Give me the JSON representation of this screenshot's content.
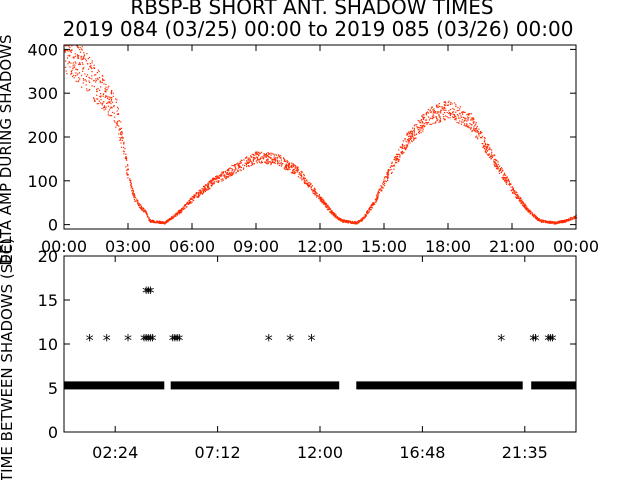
{
  "figure": {
    "title_line1": "RBSP-B SHORT ANT. SHADOW TIMES",
    "title_line2": "2019 084 (03/25) 00:00 to 2019 085 (03/26) 00:00"
  },
  "chart_data": [
    {
      "type": "scatter",
      "title": "",
      "ylabel": "DELTA AMP DURING SHADOWS",
      "xlabel": "",
      "x_unit": "hours",
      "xlim": [
        0,
        24
      ],
      "ylim": [
        -10,
        410
      ],
      "xticks": [
        "00:00",
        "03:00",
        "06:00",
        "09:00",
        "12:00",
        "15:00",
        "18:00",
        "21:00",
        "00:00"
      ],
      "yticks": [
        0,
        100,
        200,
        300,
        400
      ],
      "color": "#ff2a00",
      "grid": false,
      "series": [
        {
          "profile_envelope": [
            [
              0.0,
              400
            ],
            [
              0.5,
              380
            ],
            [
              1.0,
              350
            ],
            [
              1.5,
              320
            ],
            [
              2.0,
              290
            ],
            [
              2.5,
              250
            ],
            [
              3.0,
              110
            ],
            [
              3.3,
              60
            ],
            [
              3.6,
              40
            ],
            [
              3.8,
              30
            ],
            [
              4.0,
              10
            ],
            [
              4.7,
              5
            ],
            [
              5.0,
              15
            ],
            [
              5.5,
              35
            ],
            [
              6.0,
              60
            ],
            [
              7.0,
              100
            ],
            [
              8.0,
              130
            ],
            [
              9.0,
              155
            ],
            [
              10.0,
              150
            ],
            [
              11.0,
              120
            ],
            [
              12.0,
              60
            ],
            [
              12.6,
              25
            ],
            [
              13.0,
              10
            ],
            [
              13.7,
              5
            ],
            [
              14.0,
              15
            ],
            [
              14.5,
              50
            ],
            [
              15.0,
              100
            ],
            [
              16.0,
              190
            ],
            [
              17.0,
              245
            ],
            [
              18.0,
              265
            ],
            [
              19.0,
              240
            ],
            [
              20.0,
              160
            ],
            [
              21.0,
              80
            ],
            [
              21.8,
              30
            ],
            [
              22.3,
              10
            ],
            [
              23.0,
              5
            ],
            [
              23.5,
              10
            ],
            [
              24.0,
              20
            ]
          ]
        }
      ]
    },
    {
      "type": "scatter",
      "title": "",
      "ylabel": "TIME BETWEEN SHADOWS (SEC)",
      "xlabel": "",
      "x_unit": "hours",
      "xlim": [
        0,
        24
      ],
      "ylim": [
        0,
        20
      ],
      "xticks": [
        "02:24",
        "07:12",
        "12:00",
        "16:48",
        "21:35"
      ],
      "yticks": [
        0,
        5,
        10,
        15,
        20
      ],
      "marker": "asterisk",
      "grid": false,
      "series": [
        {
          "baseline_value": 5.3,
          "baseline_ranges": [
            [
              0.0,
              4.7
            ],
            [
              5.0,
              12.9
            ],
            [
              13.7,
              21.5
            ],
            [
              21.9,
              24.0
            ]
          ],
          "points": [
            [
              1.2,
              10.6
            ],
            [
              2.0,
              10.6
            ],
            [
              3.0,
              10.6
            ],
            [
              3.75,
              10.6
            ],
            [
              3.85,
              10.6
            ],
            [
              3.95,
              10.6
            ],
            [
              4.05,
              10.6
            ],
            [
              4.15,
              10.6
            ],
            [
              3.85,
              16.0
            ],
            [
              3.95,
              16.0
            ],
            [
              4.05,
              16.0
            ],
            [
              5.1,
              10.6
            ],
            [
              5.2,
              10.6
            ],
            [
              5.3,
              10.6
            ],
            [
              5.4,
              10.6
            ],
            [
              9.6,
              10.6
            ],
            [
              10.6,
              10.6
            ],
            [
              11.6,
              10.6
            ],
            [
              20.5,
              10.6
            ],
            [
              22.0,
              10.6
            ],
            [
              22.1,
              10.6
            ],
            [
              22.7,
              10.6
            ],
            [
              22.8,
              10.6
            ],
            [
              22.9,
              10.6
            ]
          ]
        }
      ]
    }
  ]
}
